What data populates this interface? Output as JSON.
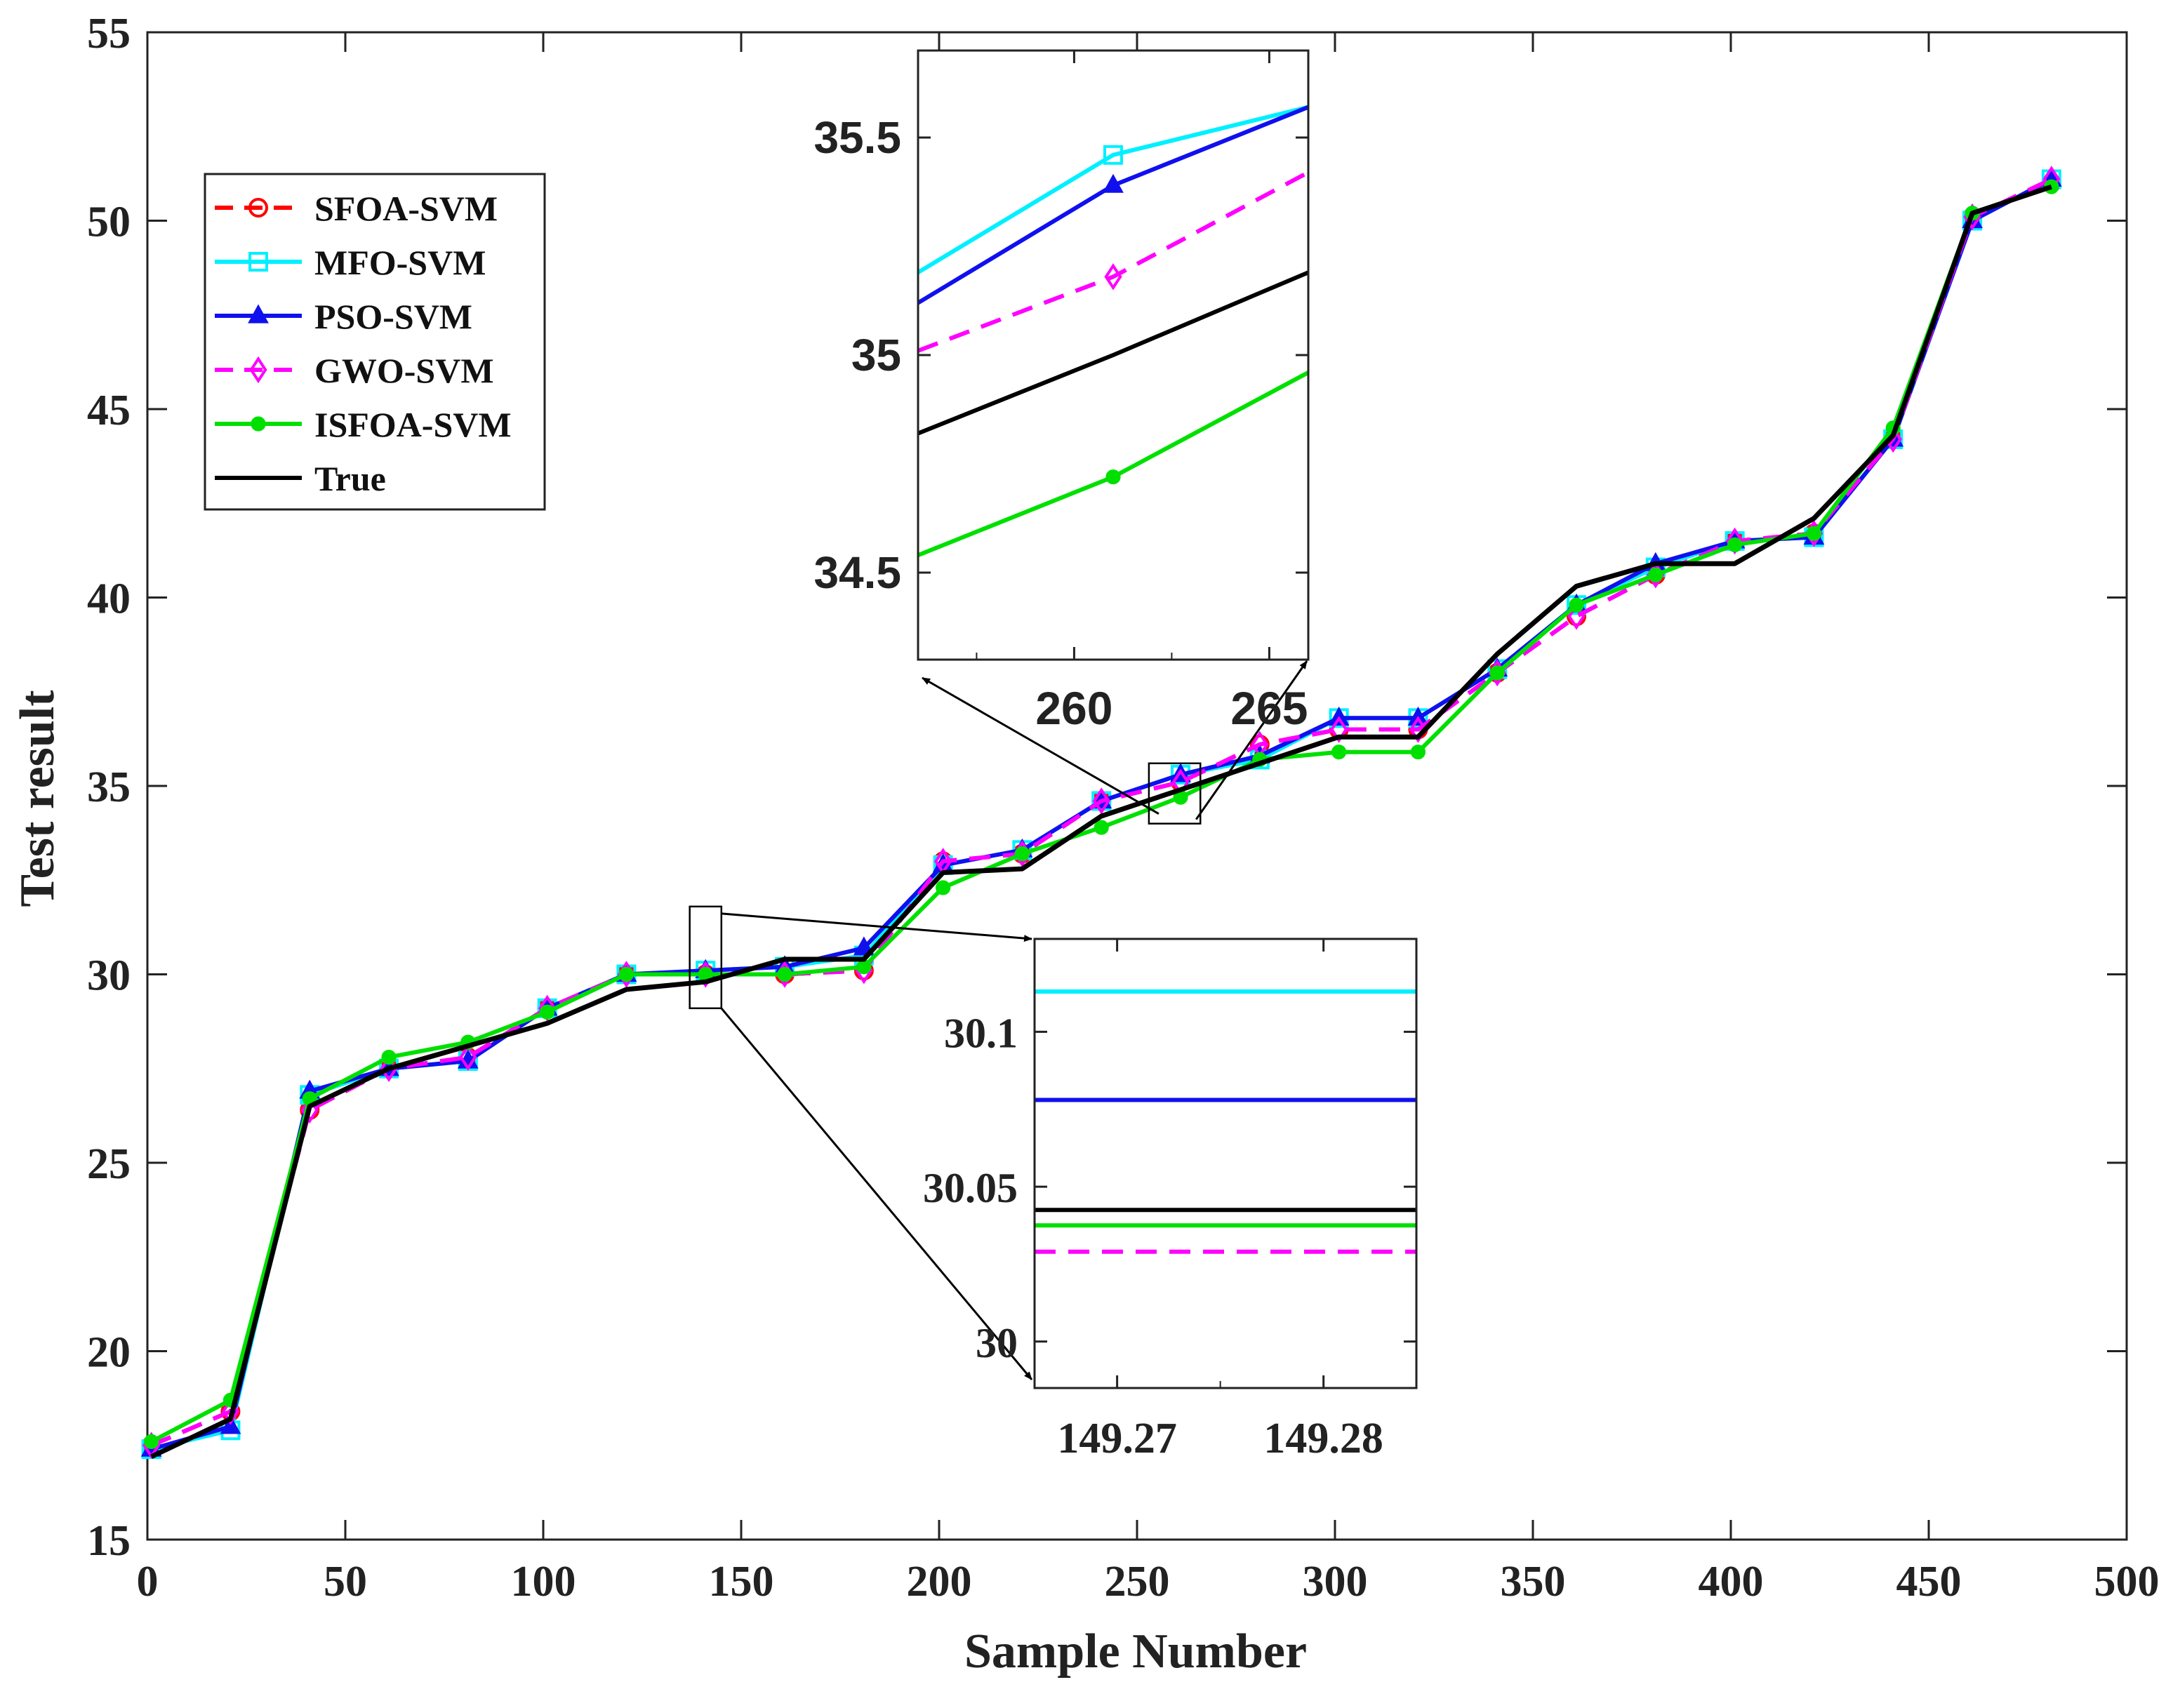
{
  "chart_data": {
    "type": "line",
    "xlabel": "Sample Number",
    "ylabel": "Test result",
    "xlim": [
      0,
      500
    ],
    "ylim": [
      15,
      55
    ],
    "xticks": [
      0,
      50,
      100,
      150,
      200,
      250,
      300,
      350,
      400,
      450,
      500
    ],
    "yticks": [
      15,
      20,
      25,
      30,
      35,
      40,
      45,
      50,
      55
    ],
    "legend_position": "top-left",
    "x": [
      1,
      21,
      41,
      61,
      81,
      101,
      121,
      141,
      161,
      181,
      201,
      221,
      241,
      261,
      281,
      301,
      321,
      341,
      361,
      381,
      401,
      421,
      441,
      461,
      481
    ],
    "series": [
      {
        "name": "SFOA-SVM",
        "color": "#ff0000",
        "dash": "dash",
        "marker": "circle",
        "values": [
          17.5,
          18.4,
          26.4,
          27.5,
          27.8,
          29.1,
          30.0,
          30.0,
          30.0,
          30.1,
          33.0,
          33.2,
          34.6,
          35.1,
          36.1,
          36.5,
          36.5,
          38.0,
          39.5,
          40.6,
          41.5,
          41.7,
          44.2,
          50.1,
          51.0
        ]
      },
      {
        "name": "MFO-SVM",
        "color": "#00f0ff",
        "dash": "solid",
        "marker": "square",
        "values": [
          17.4,
          17.9,
          26.8,
          27.5,
          27.7,
          29.1,
          30.0,
          30.1,
          30.2,
          30.5,
          32.9,
          33.3,
          34.6,
          35.3,
          35.7,
          36.8,
          36.8,
          38.1,
          39.8,
          40.8,
          41.5,
          41.6,
          44.2,
          50.0,
          51.1
        ]
      },
      {
        "name": "PSO-SVM",
        "color": "#1010ee",
        "dash": "solid",
        "marker": "triangle",
        "values": [
          17.4,
          18.0,
          26.9,
          27.5,
          27.7,
          29.1,
          30.0,
          30.1,
          30.2,
          30.7,
          32.9,
          33.3,
          34.6,
          35.3,
          35.8,
          36.8,
          36.8,
          38.1,
          39.8,
          40.9,
          41.5,
          41.6,
          44.2,
          50.0,
          51.1
        ]
      },
      {
        "name": "GWO-SVM",
        "color": "#ff00ff",
        "dash": "dash",
        "marker": "diamond",
        "values": [
          17.5,
          18.4,
          26.4,
          27.5,
          27.8,
          29.1,
          30.0,
          30.0,
          30.0,
          30.1,
          33.0,
          33.2,
          34.6,
          35.1,
          36.1,
          36.5,
          36.5,
          38.0,
          39.5,
          40.6,
          41.5,
          41.7,
          44.2,
          50.1,
          51.1
        ]
      },
      {
        "name": "ISFOA-SVM",
        "color": "#00e000",
        "dash": "solid",
        "marker": "dot",
        "values": [
          17.6,
          18.7,
          26.7,
          27.8,
          28.2,
          29.0,
          30.0,
          30.0,
          30.0,
          30.2,
          32.3,
          33.2,
          33.9,
          34.7,
          35.7,
          35.9,
          35.9,
          38.0,
          39.8,
          40.6,
          41.4,
          41.7,
          44.5,
          50.2,
          50.9
        ]
      },
      {
        "name": "True",
        "color": "#000000",
        "dash": "solid",
        "marker": "none",
        "values": [
          17.2,
          18.2,
          26.5,
          27.5,
          28.1,
          28.7,
          29.6,
          29.8,
          30.4,
          30.4,
          32.7,
          32.8,
          34.2,
          34.9,
          35.6,
          36.3,
          36.3,
          38.5,
          40.3,
          40.9,
          40.9,
          42.1,
          44.3,
          50.2,
          50.9
        ]
      }
    ],
    "insets": [
      {
        "name": "zoom-upper",
        "xlim": [
          256,
          266
        ],
        "ylim": [
          34.3,
          35.7
        ],
        "xticks": [
          260,
          265
        ],
        "yticks": [
          34.5,
          35,
          35.5
        ],
        "ytick_labels": [
          "34.5",
          "35",
          "35.5"
        ],
        "zoom_box": {
          "xlim": [
            253,
            266
          ],
          "ylim": [
            34.0,
            35.6
          ]
        },
        "lines": [
          {
            "series": "MFO-SVM",
            "color": "#00f0ff",
            "dash": "solid",
            "marker": "square",
            "x": [
              256,
              261,
              266
            ],
            "y": [
              35.19,
              35.46,
              35.57
            ],
            "marker_x": [
              261
            ]
          },
          {
            "series": "PSO-SVM",
            "color": "#1010ee",
            "dash": "solid",
            "marker": "triangle",
            "x": [
              256,
              261,
              266
            ],
            "y": [
              35.12,
              35.39,
              35.57
            ],
            "marker_x": [
              261
            ]
          },
          {
            "series": "GWO-SVM",
            "color": "#ff00ff",
            "dash": "dash",
            "marker": "diamond",
            "x": [
              256,
              261,
              266
            ],
            "y": [
              35.01,
              35.18,
              35.42
            ],
            "marker_x": [
              261
            ]
          },
          {
            "series": "True",
            "color": "#000000",
            "dash": "solid",
            "marker": "none",
            "x": [
              256,
              261,
              266
            ],
            "y": [
              34.82,
              35.0,
              35.19
            ],
            "marker_x": []
          },
          {
            "series": "ISFOA-SVM",
            "color": "#00e000",
            "dash": "solid",
            "marker": "dot",
            "x": [
              256,
              261,
              266
            ],
            "y": [
              34.54,
              34.72,
              34.96
            ],
            "marker_x": [
              261
            ]
          }
        ]
      },
      {
        "name": "zoom-lower",
        "xlim": [
          149.266,
          149.2845
        ],
        "ylim": [
          29.985,
          30.13
        ],
        "xticks": [
          149.27,
          149.28
        ],
        "yticks": [
          30,
          30.05,
          30.1
        ],
        "ytick_labels": [
          "30",
          "30.05",
          "30.1"
        ],
        "zoom_box": {
          "xlim": [
            137,
            145
          ],
          "ylim": [
            29.1,
            31.8
          ]
        },
        "lines": [
          {
            "series": "MFO-SVM",
            "color": "#00f0ff",
            "dash": "solid",
            "marker": "none",
            "x": [
              149.266,
              149.2845
            ],
            "y": [
              30.113,
              30.113
            ],
            "marker_x": []
          },
          {
            "series": "PSO-SVM",
            "color": "#1010ee",
            "dash": "solid",
            "marker": "none",
            "x": [
              149.266,
              149.2845
            ],
            "y": [
              30.078,
              30.078
            ],
            "marker_x": []
          },
          {
            "series": "True",
            "color": "#000000",
            "dash": "solid",
            "marker": "none",
            "x": [
              149.266,
              149.2845
            ],
            "y": [
              30.0425,
              30.0425
            ],
            "marker_x": []
          },
          {
            "series": "ISFOA-SVM",
            "color": "#00e000",
            "dash": "solid",
            "marker": "none",
            "x": [
              149.266,
              149.2845
            ],
            "y": [
              30.0375,
              30.0375
            ],
            "marker_x": []
          },
          {
            "series": "GWO-SVM",
            "color": "#ff00ff",
            "dash": "dash",
            "marker": "none",
            "x": [
              149.266,
              149.2845
            ],
            "y": [
              30.029,
              30.029
            ],
            "marker_x": []
          }
        ]
      }
    ]
  }
}
